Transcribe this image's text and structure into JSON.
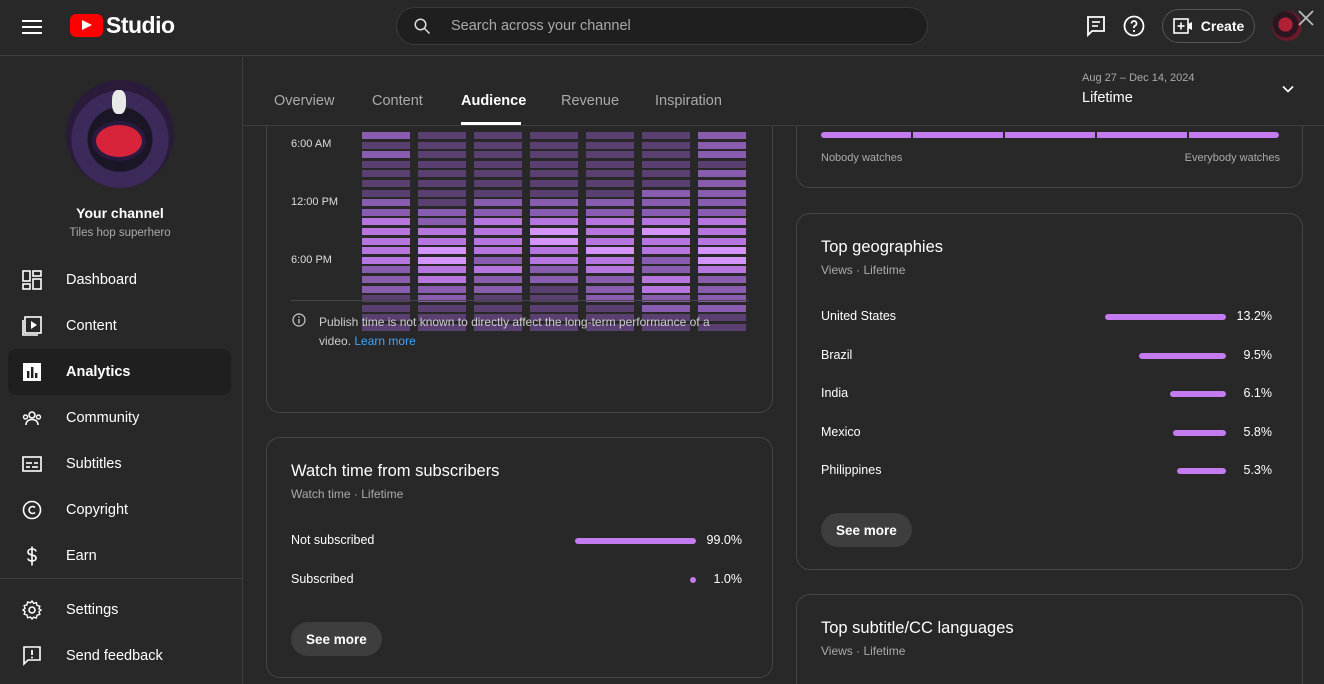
{
  "app": {
    "brand": "Studio",
    "search_placeholder": "Search across your channel",
    "create_label": "Create"
  },
  "sidebar": {
    "channel_title": "Your channel",
    "channel_handle": "Tiles hop superhero",
    "items": [
      {
        "label": "Dashboard",
        "icon": "dashboard-icon"
      },
      {
        "label": "Content",
        "icon": "content-icon"
      },
      {
        "label": "Analytics",
        "icon": "analytics-icon",
        "active": true
      },
      {
        "label": "Community",
        "icon": "community-icon"
      },
      {
        "label": "Subtitles",
        "icon": "subtitles-icon"
      },
      {
        "label": "Copyright",
        "icon": "copyright-icon"
      },
      {
        "label": "Earn",
        "icon": "earn-icon"
      }
    ],
    "bottom_items": [
      {
        "label": "Settings",
        "icon": "gear-icon"
      },
      {
        "label": "Send feedback",
        "icon": "feedback-icon"
      }
    ]
  },
  "tabs": [
    "Overview",
    "Content",
    "Audience",
    "Revenue",
    "Inspiration"
  ],
  "active_tab": "Audience",
  "date_filter": {
    "range": "Aug 27 – Dec 14, 2024",
    "value": "Lifetime"
  },
  "heatmap": {
    "time_labels": [
      "6:00 AM",
      "12:00 PM",
      "6:00 PM"
    ],
    "note": "Publish time is not known to directly affect the long-term performance of a video.",
    "learn_more": "Learn more",
    "columns": [
      [
        2,
        1,
        2,
        1,
        1,
        1,
        1,
        2,
        2,
        3,
        3,
        3,
        3,
        3,
        2,
        2,
        2,
        1,
        1,
        1,
        1
      ],
      [
        1,
        1,
        1,
        1,
        1,
        1,
        1,
        1,
        2,
        2,
        3,
        3,
        4,
        4,
        3,
        3,
        2,
        2,
        1,
        1,
        1
      ],
      [
        1,
        1,
        1,
        1,
        1,
        1,
        1,
        2,
        2,
        3,
        3,
        3,
        3,
        2,
        3,
        2,
        2,
        1,
        1,
        1,
        1
      ],
      [
        1,
        1,
        1,
        1,
        1,
        1,
        1,
        2,
        2,
        3,
        4,
        4,
        3,
        3,
        2,
        2,
        1,
        1,
        1,
        1,
        1
      ],
      [
        1,
        1,
        1,
        1,
        1,
        1,
        1,
        2,
        2,
        3,
        3,
        3,
        4,
        3,
        3,
        2,
        2,
        2,
        1,
        1,
        1
      ],
      [
        1,
        1,
        1,
        1,
        1,
        1,
        2,
        2,
        2,
        3,
        4,
        3,
        3,
        2,
        2,
        3,
        3,
        2,
        2,
        1,
        1
      ],
      [
        2,
        2,
        2,
        1,
        2,
        2,
        2,
        2,
        2,
        3,
        3,
        3,
        4,
        4,
        3,
        2,
        2,
        2,
        2,
        1,
        1
      ]
    ]
  },
  "loyalty_scale": {
    "left_label": "Nobody watches",
    "right_label": "Everybody watches"
  },
  "watch_time": {
    "title": "Watch time from subscribers",
    "subtitle": "Watch time · Lifetime",
    "rows": [
      {
        "label": "Not subscribed",
        "value": "99.0%",
        "fraction": 0.99
      },
      {
        "label": "Subscribed",
        "value": "1.0%",
        "fraction": 0.01
      }
    ],
    "see_more": "See more"
  },
  "geographies": {
    "title": "Top geographies",
    "subtitle": "Views · Lifetime",
    "rows": [
      {
        "label": "United States",
        "value": "13.2%",
        "fraction": 0.132
      },
      {
        "label": "Brazil",
        "value": "9.5%",
        "fraction": 0.095
      },
      {
        "label": "India",
        "value": "6.1%",
        "fraction": 0.061
      },
      {
        "label": "Mexico",
        "value": "5.8%",
        "fraction": 0.058
      },
      {
        "label": "Philippines",
        "value": "5.3%",
        "fraction": 0.053
      }
    ],
    "see_more": "See more"
  },
  "subtitles": {
    "title": "Top subtitle/CC languages",
    "subtitle": "Views · Lifetime"
  },
  "colors": {
    "accent": "#c57bf0",
    "background": "#282828",
    "link": "#3ea6ff",
    "heat_levels": [
      "#3a3140",
      "#5a4070",
      "#8a5cb0",
      "#b775e0",
      "#d494fa"
    ]
  }
}
